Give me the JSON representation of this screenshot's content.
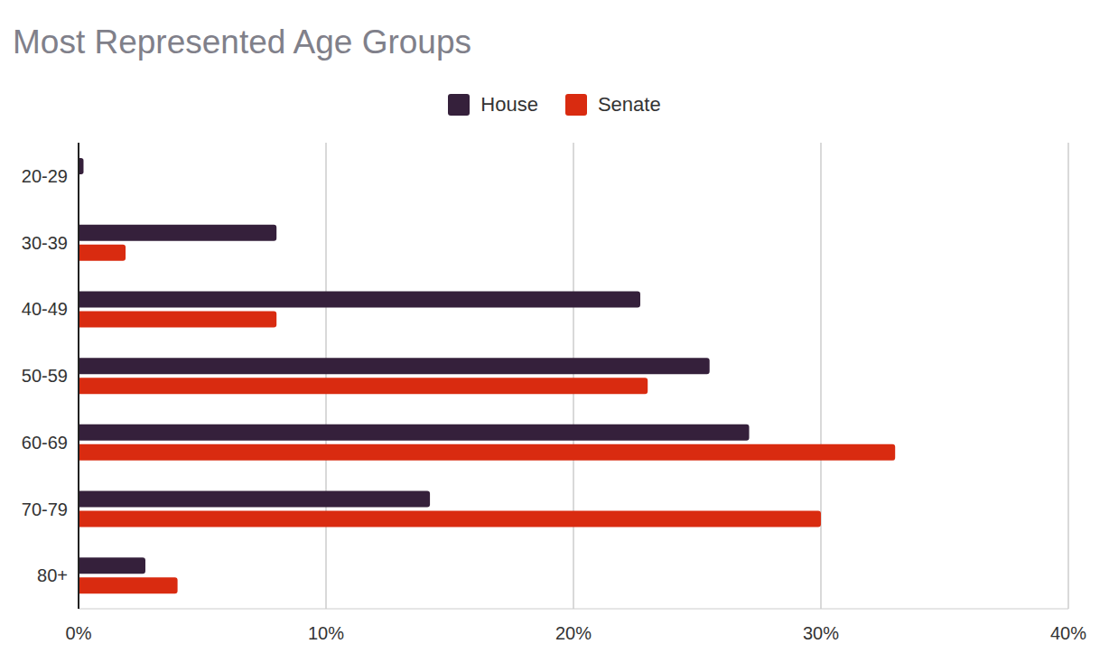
{
  "chart_data": {
    "type": "bar",
    "title": "Most Represented Age Groups",
    "orientation": "horizontal",
    "categories": [
      "20-29",
      "30-39",
      "40-49",
      "50-59",
      "60-69",
      "70-79",
      "80+"
    ],
    "series": [
      {
        "name": "House",
        "color": "#35203b",
        "values": [
          0.2,
          8.0,
          22.7,
          25.5,
          27.1,
          14.2,
          2.7
        ]
      },
      {
        "name": "Senate",
        "color": "#d92b10",
        "values": [
          0,
          1.9,
          8.0,
          23.0,
          33.0,
          30.0,
          4.0
        ]
      }
    ],
    "xlim": [
      0,
      40
    ],
    "xticks": [
      {
        "value": 0,
        "label": "0%"
      },
      {
        "value": 10,
        "label": "10%"
      },
      {
        "value": 20,
        "label": "20%"
      },
      {
        "value": 30,
        "label": "30%"
      },
      {
        "value": 40,
        "label": "40%"
      }
    ],
    "grid": true,
    "legend": "top"
  }
}
